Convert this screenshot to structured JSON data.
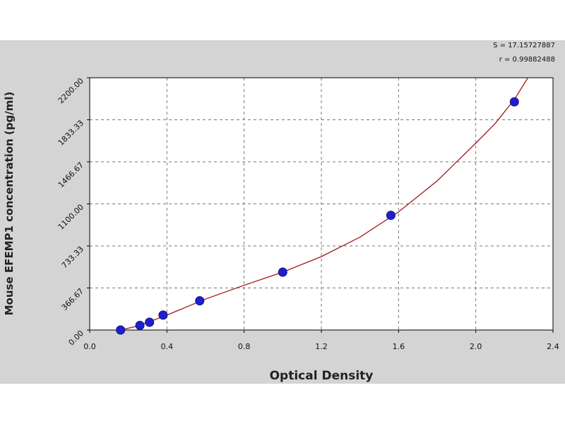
{
  "chart_data": {
    "type": "scatter",
    "xlabel": "Optical Density",
    "ylabel": "Mouse EFEMP1 concentration (pg/ml)",
    "xlim": [
      0.0,
      2.4
    ],
    "ylim": [
      0.0,
      2200.0
    ],
    "x_ticks": [
      "0.0",
      "0.4",
      "0.8",
      "1.2",
      "1.6",
      "2.0",
      "2.4"
    ],
    "y_ticks": [
      "0.00",
      "366.67",
      "733.33",
      "1100.00",
      "1466.67",
      "1833.33",
      "2200.00"
    ],
    "grid": true,
    "points": {
      "x": [
        0.16,
        0.26,
        0.31,
        0.38,
        0.57,
        1.0,
        1.56,
        2.2
      ],
      "y": [
        0,
        40,
        68,
        130,
        255,
        505,
        1000,
        1990
      ]
    },
    "fit_curve": {
      "x": [
        0.16,
        0.25,
        0.4,
        0.6,
        0.8,
        1.0,
        1.2,
        1.4,
        1.6,
        1.8,
        2.0,
        2.1,
        2.2,
        2.27
      ],
      "y": [
        0,
        35,
        130,
        270,
        390,
        505,
        640,
        810,
        1030,
        1300,
        1630,
        1800,
        2010,
        2200
      ]
    },
    "stats": [
      "S = 17.15727887",
      "r = 0.99882488"
    ],
    "colors": {
      "background": "#d4d4d4",
      "plot_area": "#ffffff",
      "grid": "#777777",
      "curve": "#a01818",
      "marker": "#1f1fd0",
      "marker_edge": "#101080"
    }
  }
}
